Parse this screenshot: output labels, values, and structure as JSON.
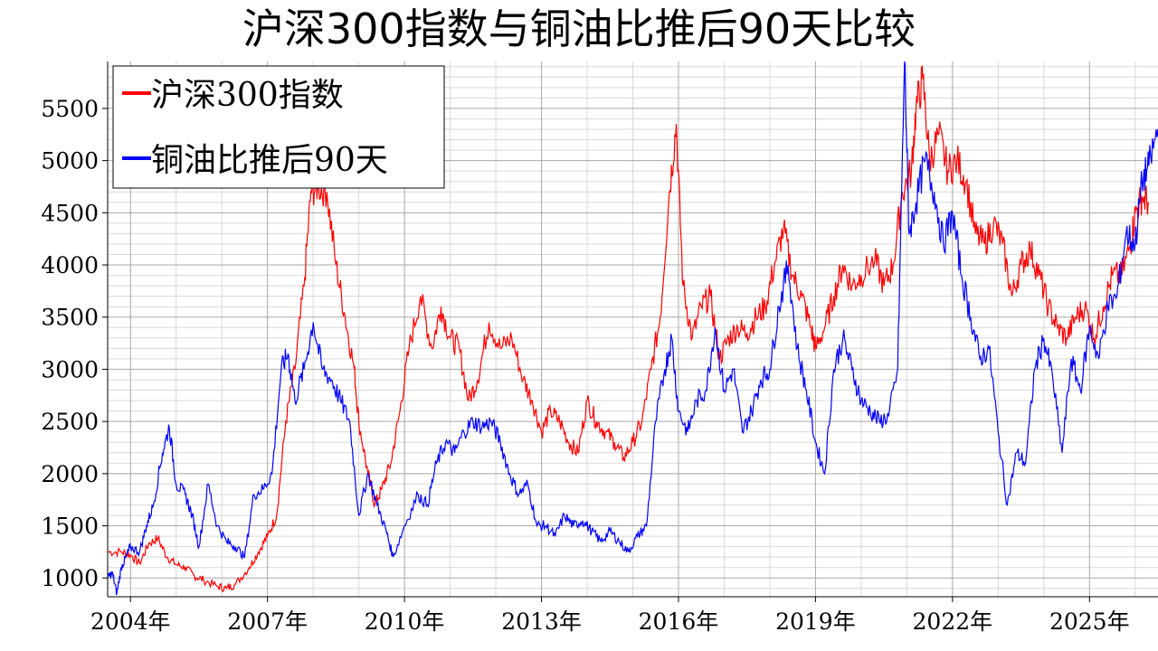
{
  "chart_data": {
    "type": "line",
    "title": "沪深300指数与铜油比推后90天比较",
    "xlabel": "",
    "ylabel": "",
    "x_range": [
      2003.5,
      2026.5
    ],
    "ylim": [
      820,
      5950
    ],
    "grid": true,
    "legend_position": "top-left",
    "x_ticks": [
      {
        "value": 2004,
        "label": "2004年"
      },
      {
        "value": 2007,
        "label": "2007年"
      },
      {
        "value": 2010,
        "label": "2010年"
      },
      {
        "value": 2013,
        "label": "2013年"
      },
      {
        "value": 2016,
        "label": "2016年"
      },
      {
        "value": 2019,
        "label": "2019年"
      },
      {
        "value": 2022,
        "label": "2022年"
      },
      {
        "value": 2025,
        "label": "2025年"
      }
    ],
    "y_ticks": [
      1000,
      1500,
      2000,
      2500,
      3000,
      3500,
      4000,
      4500,
      5000,
      5500
    ],
    "series": [
      {
        "name": "沪深300指数",
        "color": "#ff0000",
        "points": [
          [
            2003.5,
            1250
          ],
          [
            2003.8,
            1250
          ],
          [
            2004.0,
            1220
          ],
          [
            2004.2,
            1140
          ],
          [
            2004.4,
            1330
          ],
          [
            2004.6,
            1380
          ],
          [
            2004.8,
            1200
          ],
          [
            2005.0,
            1130
          ],
          [
            2005.2,
            1100
          ],
          [
            2005.4,
            1020
          ],
          [
            2005.6,
            980
          ],
          [
            2005.9,
            920
          ],
          [
            2006.1,
            900
          ],
          [
            2006.3,
            940
          ],
          [
            2006.6,
            1100
          ],
          [
            2006.8,
            1250
          ],
          [
            2007.0,
            1400
          ],
          [
            2007.2,
            1600
          ],
          [
            2007.4,
            2500
          ],
          [
            2007.6,
            3000
          ],
          [
            2007.8,
            3800
          ],
          [
            2007.95,
            4700
          ],
          [
            2008.1,
            4750
          ],
          [
            2008.3,
            4700
          ],
          [
            2008.5,
            4000
          ],
          [
            2008.7,
            3500
          ],
          [
            2008.9,
            3000
          ],
          [
            2009.0,
            2500
          ],
          [
            2009.2,
            2000
          ],
          [
            2009.35,
            1700
          ],
          [
            2009.5,
            1850
          ],
          [
            2009.7,
            2100
          ],
          [
            2009.9,
            2600
          ],
          [
            2010.1,
            3200
          ],
          [
            2010.35,
            3700
          ],
          [
            2010.6,
            3200
          ],
          [
            2010.8,
            3600
          ],
          [
            2011.0,
            3300
          ],
          [
            2011.2,
            3200
          ],
          [
            2011.4,
            2700
          ],
          [
            2011.6,
            2900
          ],
          [
            2011.85,
            3450
          ],
          [
            2012.1,
            3200
          ],
          [
            2012.35,
            3300
          ],
          [
            2012.6,
            2900
          ],
          [
            2012.8,
            2700
          ],
          [
            2013.0,
            2400
          ],
          [
            2013.2,
            2600
          ],
          [
            2013.4,
            2500
          ],
          [
            2013.6,
            2300
          ],
          [
            2013.8,
            2200
          ],
          [
            2014.0,
            2700
          ],
          [
            2014.2,
            2500
          ],
          [
            2014.4,
            2400
          ],
          [
            2014.6,
            2300
          ],
          [
            2014.8,
            2150
          ],
          [
            2015.0,
            2300
          ],
          [
            2015.2,
            2500
          ],
          [
            2015.4,
            3000
          ],
          [
            2015.6,
            3500
          ],
          [
            2015.8,
            4700
          ],
          [
            2015.95,
            5350
          ],
          [
            2016.1,
            3800
          ],
          [
            2016.3,
            3300
          ],
          [
            2016.5,
            3600
          ],
          [
            2016.7,
            3700
          ],
          [
            2016.9,
            3100
          ],
          [
            2017.1,
            3300
          ],
          [
            2017.3,
            3400
          ],
          [
            2017.5,
            3350
          ],
          [
            2017.7,
            3500
          ],
          [
            2017.9,
            3600
          ],
          [
            2018.1,
            4000
          ],
          [
            2018.3,
            4350
          ],
          [
            2018.5,
            3900
          ],
          [
            2018.7,
            3700
          ],
          [
            2018.9,
            3400
          ],
          [
            2019.0,
            3200
          ],
          [
            2019.2,
            3400
          ],
          [
            2019.4,
            3700
          ],
          [
            2019.6,
            4000
          ],
          [
            2019.8,
            3800
          ],
          [
            2020.0,
            3900
          ],
          [
            2020.3,
            4050
          ],
          [
            2020.5,
            3800
          ],
          [
            2020.7,
            4000
          ],
          [
            2020.9,
            4700
          ],
          [
            2021.1,
            4900
          ],
          [
            2021.2,
            5500
          ],
          [
            2021.35,
            5780
          ],
          [
            2021.5,
            5000
          ],
          [
            2021.7,
            5250
          ],
          [
            2021.9,
            4900
          ],
          [
            2022.1,
            5000
          ],
          [
            2022.3,
            4800
          ],
          [
            2022.5,
            4300
          ],
          [
            2022.7,
            4200
          ],
          [
            2022.9,
            4400
          ],
          [
            2023.1,
            4200
          ],
          [
            2023.3,
            3700
          ],
          [
            2023.5,
            4000
          ],
          [
            2023.7,
            4150
          ],
          [
            2023.9,
            3900
          ],
          [
            2024.1,
            3600
          ],
          [
            2024.3,
            3400
          ],
          [
            2024.5,
            3300
          ],
          [
            2024.7,
            3500
          ],
          [
            2024.9,
            3600
          ],
          [
            2025.1,
            3300
          ],
          [
            2025.3,
            3600
          ],
          [
            2025.5,
            3900
          ],
          [
            2025.7,
            3900
          ],
          [
            2025.9,
            4200
          ],
          [
            2026.0,
            4500
          ],
          [
            2026.15,
            4650
          ],
          [
            2026.3,
            4600
          ]
        ]
      },
      {
        "name": "铜油比推后90天",
        "color": "#0000ff",
        "points": [
          [
            2003.5,
            1000
          ],
          [
            2003.6,
            1050
          ],
          [
            2003.7,
            850
          ],
          [
            2003.8,
            1100
          ],
          [
            2003.9,
            1200
          ],
          [
            2004.0,
            1300
          ],
          [
            2004.2,
            1250
          ],
          [
            2004.35,
            1500
          ],
          [
            2004.5,
            1700
          ],
          [
            2004.7,
            2200
          ],
          [
            2004.85,
            2450
          ],
          [
            2005.0,
            1900
          ],
          [
            2005.2,
            1800
          ],
          [
            2005.35,
            1600
          ],
          [
            2005.5,
            1300
          ],
          [
            2005.7,
            1900
          ],
          [
            2005.9,
            1500
          ],
          [
            2006.1,
            1350
          ],
          [
            2006.3,
            1300
          ],
          [
            2006.5,
            1200
          ],
          [
            2006.7,
            1800
          ],
          [
            2006.9,
            1850
          ],
          [
            2007.1,
            2000
          ],
          [
            2007.3,
            3000
          ],
          [
            2007.45,
            3150
          ],
          [
            2007.6,
            2700
          ],
          [
            2007.8,
            3000
          ],
          [
            2008.0,
            3450
          ],
          [
            2008.2,
            3000
          ],
          [
            2008.4,
            2900
          ],
          [
            2008.6,
            2700
          ],
          [
            2008.8,
            2500
          ],
          [
            2009.0,
            1600
          ],
          [
            2009.2,
            2000
          ],
          [
            2009.4,
            1700
          ],
          [
            2009.6,
            1450
          ],
          [
            2009.75,
            1200
          ],
          [
            2010.0,
            1500
          ],
          [
            2010.3,
            1800
          ],
          [
            2010.5,
            1700
          ],
          [
            2010.7,
            2100
          ],
          [
            2010.9,
            2300
          ],
          [
            2011.1,
            2200
          ],
          [
            2011.3,
            2400
          ],
          [
            2011.5,
            2500
          ],
          [
            2011.7,
            2450
          ],
          [
            2011.9,
            2500
          ],
          [
            2012.1,
            2300
          ],
          [
            2012.3,
            2000
          ],
          [
            2012.5,
            1800
          ],
          [
            2012.7,
            1900
          ],
          [
            2012.9,
            1500
          ],
          [
            2013.1,
            1500
          ],
          [
            2013.3,
            1400
          ],
          [
            2013.5,
            1600
          ],
          [
            2013.7,
            1500
          ],
          [
            2013.9,
            1550
          ],
          [
            2014.1,
            1450
          ],
          [
            2014.3,
            1350
          ],
          [
            2014.5,
            1450
          ],
          [
            2014.7,
            1350
          ],
          [
            2014.9,
            1250
          ],
          [
            2015.1,
            1400
          ],
          [
            2015.3,
            1500
          ],
          [
            2015.5,
            2500
          ],
          [
            2015.7,
            3000
          ],
          [
            2015.85,
            3300
          ],
          [
            2016.0,
            2600
          ],
          [
            2016.2,
            2400
          ],
          [
            2016.4,
            2700
          ],
          [
            2016.6,
            2800
          ],
          [
            2016.8,
            3400
          ],
          [
            2017.0,
            2800
          ],
          [
            2017.2,
            3000
          ],
          [
            2017.4,
            2400
          ],
          [
            2017.6,
            2600
          ],
          [
            2017.8,
            2900
          ],
          [
            2018.0,
            3000
          ],
          [
            2018.2,
            3600
          ],
          [
            2018.4,
            4000
          ],
          [
            2018.6,
            3200
          ],
          [
            2018.8,
            2800
          ],
          [
            2019.0,
            2300
          ],
          [
            2019.2,
            2000
          ],
          [
            2019.4,
            3000
          ],
          [
            2019.6,
            3300
          ],
          [
            2019.8,
            3000
          ],
          [
            2020.0,
            2700
          ],
          [
            2020.2,
            2600
          ],
          [
            2020.4,
            2500
          ],
          [
            2020.6,
            2550
          ],
          [
            2020.8,
            3000
          ],
          [
            2020.95,
            5950
          ],
          [
            2021.05,
            4300
          ],
          [
            2021.2,
            4600
          ],
          [
            2021.4,
            5000
          ],
          [
            2021.6,
            4700
          ],
          [
            2021.8,
            4200
          ],
          [
            2022.0,
            4500
          ],
          [
            2022.2,
            3900
          ],
          [
            2022.4,
            3500
          ],
          [
            2022.6,
            3100
          ],
          [
            2022.8,
            3200
          ],
          [
            2023.0,
            2400
          ],
          [
            2023.2,
            1700
          ],
          [
            2023.4,
            2200
          ],
          [
            2023.6,
            2100
          ],
          [
            2023.8,
            3000
          ],
          [
            2024.0,
            3300
          ],
          [
            2024.2,
            2900
          ],
          [
            2024.4,
            2200
          ],
          [
            2024.6,
            3100
          ],
          [
            2024.8,
            2800
          ],
          [
            2025.0,
            3400
          ],
          [
            2025.2,
            3100
          ],
          [
            2025.4,
            3600
          ],
          [
            2025.6,
            3700
          ],
          [
            2025.8,
            4300
          ],
          [
            2026.0,
            4200
          ],
          [
            2026.15,
            4800
          ],
          [
            2026.3,
            4950
          ],
          [
            2026.5,
            5300
          ]
        ]
      }
    ]
  }
}
